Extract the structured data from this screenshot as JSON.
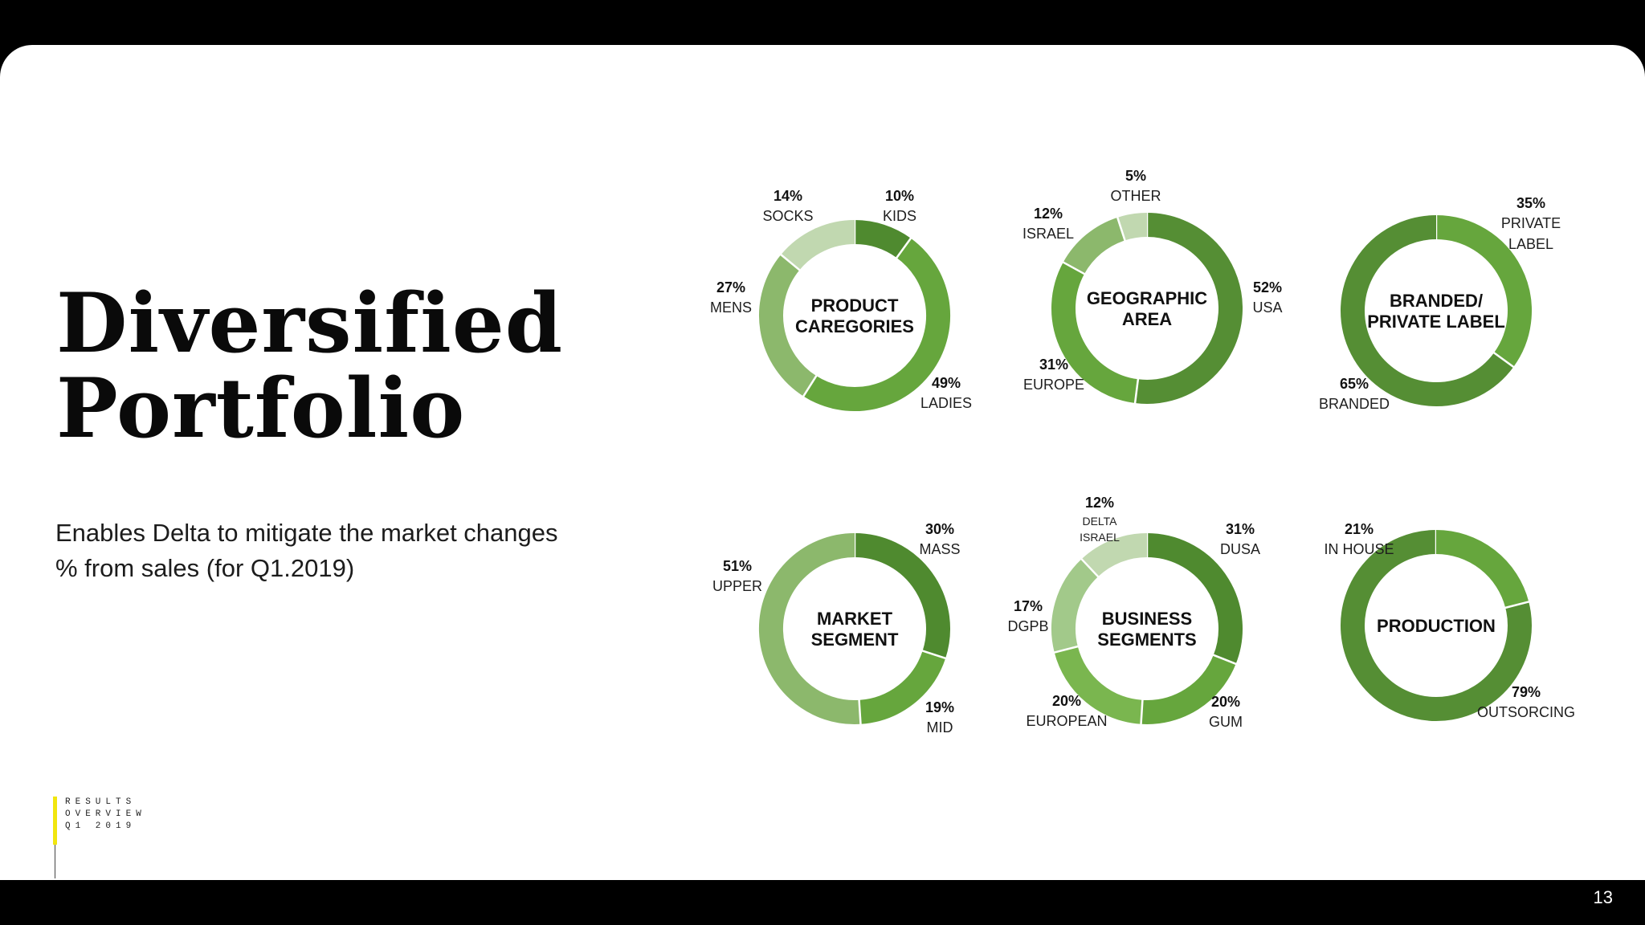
{
  "slide": {
    "title_line1": "Diversified",
    "title_line2": "Portfolio",
    "subtitle_line1": "Enables Delta to mitigate the market changes",
    "subtitle_line2": "% from sales (for Q1.2019)",
    "section_tag": [
      "RESULTS",
      "OVERVIEW",
      "Q1 2019"
    ],
    "page_number": "13",
    "accent_color": "#f1e60e"
  },
  "chart_data": [
    {
      "type": "pie",
      "title": [
        "PRODUCT",
        "CAREGORIES"
      ],
      "slices": [
        {
          "pct": "10%",
          "name": [
            "KIDS"
          ],
          "value": 10,
          "color": "#4f8a2f"
        },
        {
          "pct": "49%",
          "name": [
            "LADIES"
          ],
          "value": 49,
          "color": "#66a63d"
        },
        {
          "pct": "27%",
          "name": [
            "MENS"
          ],
          "value": 27,
          "color": "#8cb86c"
        },
        {
          "pct": "14%",
          "name": [
            "SOCKS"
          ],
          "value": 14,
          "color": "#c1d8b0"
        }
      ]
    },
    {
      "type": "pie",
      "title": [
        "GEOGRAPHIC",
        "AREA"
      ],
      "slices": [
        {
          "pct": "52%",
          "name": [
            "USA"
          ],
          "value": 52,
          "color": "#558e34"
        },
        {
          "pct": "31%",
          "name": [
            "EUROPE"
          ],
          "value": 31,
          "color": "#66a63d"
        },
        {
          "pct": "12%",
          "name": [
            "ISRAEL"
          ],
          "value": 12,
          "color": "#8cb86c"
        },
        {
          "pct": "5%",
          "name": [
            "OTHER"
          ],
          "value": 5,
          "color": "#c1d8b0"
        }
      ]
    },
    {
      "type": "pie",
      "title": [
        "BRANDED/",
        "PRIVATE LABEL"
      ],
      "slices": [
        {
          "pct": "35%",
          "name": [
            "PRIVATE",
            "LABEL"
          ],
          "value": 35,
          "color": "#66a63d"
        },
        {
          "pct": "65%",
          "name": [
            "BRANDED"
          ],
          "value": 65,
          "color": "#558e34"
        }
      ]
    },
    {
      "type": "pie",
      "title": [
        "MARKET",
        "SEGMENT"
      ],
      "slices": [
        {
          "pct": "30%",
          "name": [
            "MASS"
          ],
          "value": 30,
          "color": "#4f8a2f"
        },
        {
          "pct": "19%",
          "name": [
            "MID"
          ],
          "value": 19,
          "color": "#66a63d"
        },
        {
          "pct": "51%",
          "name": [
            "UPPER"
          ],
          "value": 51,
          "color": "#8cb86c"
        }
      ]
    },
    {
      "type": "pie",
      "title": [
        "BUSINESS",
        "SEGMENTS"
      ],
      "slices": [
        {
          "pct": "31%",
          "name": [
            "DUSA"
          ],
          "value": 31,
          "color": "#4f8a2f"
        },
        {
          "pct": "20%",
          "name": [
            "GUM"
          ],
          "value": 20,
          "color": "#66a63d"
        },
        {
          "pct": "20%",
          "name": [
            "EUROPEAN"
          ],
          "value": 20,
          "color": "#7ab64f"
        },
        {
          "pct": "17%",
          "name": [
            "DGPB"
          ],
          "value": 17,
          "color": "#a2c98a"
        },
        {
          "pct": "12%",
          "name": [
            "DELTA",
            "ISRAEL"
          ],
          "value": 12,
          "color": "#c1d8b0"
        }
      ]
    },
    {
      "type": "pie",
      "title": [
        "PRODUCTION"
      ],
      "slices": [
        {
          "pct": "79%",
          "name": [
            "OUTSORCING"
          ],
          "value": 79,
          "color": "#558e34"
        },
        {
          "pct": "21%",
          "name": [
            "IN HOUSE"
          ],
          "value": 21,
          "color": "#66a63d"
        }
      ]
    }
  ]
}
